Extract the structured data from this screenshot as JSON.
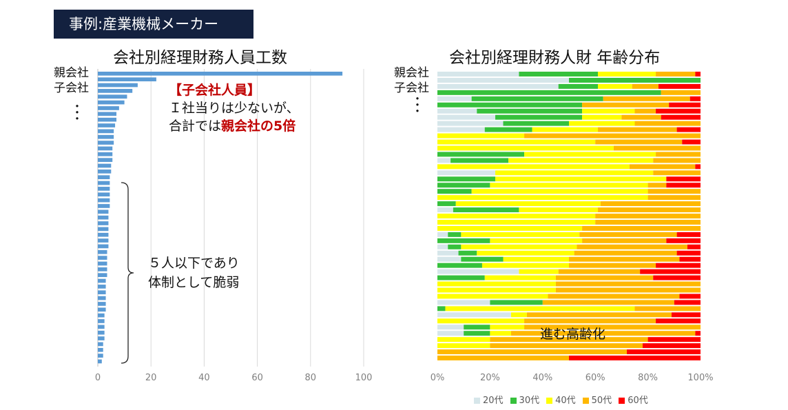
{
  "badge": "事例:産業機械メーカー",
  "left_title": "会社別経理財務人員工数",
  "right_title": "会社別経理財務人財 年齢分布",
  "row_labels": {
    "parent": "親会社",
    "subsidiary": "子会社",
    "ellipsis": "・\n・\n・"
  },
  "callout_top": {
    "heading": "【子会社人員】",
    "line1": "Ｉ社当りは少ないが、",
    "line2_prefix": "合計では",
    "line2_emph": "親会社の5倍"
  },
  "callout_mid": {
    "line1": "５人以下であり",
    "line2": "体制として脆弱"
  },
  "annotation_right": "進む高齢化",
  "colors": {
    "bar": "#5b9bd5",
    "20s": "#d6e6ea",
    "30s": "#36c13c",
    "40s": "#ffff00",
    "50s": "#ffb800",
    "60s": "#ff0000"
  },
  "chart_data": [
    {
      "type": "bar",
      "orientation": "horizontal",
      "title": "会社別経理財務人員工数",
      "xticks": [
        "0",
        "20",
        "40",
        "60",
        "80",
        "100"
      ],
      "xlim": [
        0,
        100
      ],
      "grid": true,
      "values": [
        92,
        22,
        15,
        13,
        11,
        10,
        8,
        7,
        7,
        6.5,
        6,
        6,
        6,
        5.5,
        5.5,
        5.5,
        5,
        5,
        4.5,
        4.5,
        4.5,
        4.5,
        4.5,
        4.5,
        4,
        4,
        4,
        4,
        4,
        4,
        4,
        3.5,
        3.5,
        3.5,
        3.5,
        3.5,
        3,
        3,
        3,
        3,
        3,
        3,
        2.5,
        2.5,
        2.5,
        2.5,
        2.5,
        2,
        2,
        2,
        1.5
      ]
    },
    {
      "type": "bar",
      "orientation": "horizontal",
      "stacked": true,
      "percent": true,
      "title": "会社別経理財務人財 年齢分布",
      "xticks": [
        "0%",
        "20%",
        "40%",
        "60%",
        "80%",
        "100%"
      ],
      "legend_position": "bottom",
      "series_names": [
        "20代",
        "30代",
        "40代",
        "50代",
        "60代"
      ],
      "rows": [
        [
          31,
          30,
          22,
          15,
          2
        ],
        [
          50,
          50,
          0,
          0,
          0
        ],
        [
          46,
          15,
          13,
          10,
          16
        ],
        [
          0,
          85,
          0,
          15,
          0
        ],
        [
          13,
          50,
          0,
          33,
          4
        ],
        [
          0,
          55,
          0,
          33,
          12
        ],
        [
          15,
          40,
          20,
          8,
          17
        ],
        [
          22,
          33,
          15,
          15,
          15
        ],
        [
          25,
          25,
          25,
          25,
          0
        ],
        [
          18,
          18,
          25,
          30,
          9
        ],
        [
          0,
          0,
          33,
          67,
          0
        ],
        [
          0,
          0,
          60,
          33,
          7
        ],
        [
          0,
          0,
          67,
          33,
          0
        ],
        [
          0,
          33,
          50,
          17,
          0
        ],
        [
          5,
          22,
          55,
          18,
          0
        ],
        [
          0,
          0,
          73,
          25,
          2
        ],
        [
          22,
          0,
          60,
          18,
          0
        ],
        [
          0,
          22,
          65,
          0,
          13
        ],
        [
          0,
          20,
          60,
          7,
          13
        ],
        [
          0,
          13,
          67,
          20,
          0
        ],
        [
          0,
          0,
          80,
          20,
          0
        ],
        [
          0,
          7,
          55,
          38,
          0
        ],
        [
          6,
          25,
          30,
          39,
          0
        ],
        [
          0,
          0,
          60,
          40,
          0
        ],
        [
          0,
          0,
          60,
          40,
          0
        ],
        [
          0,
          0,
          55,
          45,
          0
        ],
        [
          4,
          5,
          45,
          37,
          9
        ],
        [
          0,
          20,
          35,
          32,
          13
        ],
        [
          4,
          5,
          44,
          42,
          5
        ],
        [
          8,
          7,
          37,
          39,
          9
        ],
        [
          9,
          16,
          25,
          42,
          8
        ],
        [
          0,
          17,
          33,
          33,
          17
        ],
        [
          31,
          0,
          15,
          31,
          23
        ],
        [
          0,
          18,
          27,
          37,
          18
        ],
        [
          0,
          0,
          45,
          55,
          0
        ],
        [
          0,
          0,
          45,
          55,
          0
        ],
        [
          0,
          0,
          42,
          50,
          8
        ],
        [
          20,
          20,
          0,
          50,
          10
        ],
        [
          0,
          3,
          72,
          25,
          0
        ],
        [
          28,
          0,
          6,
          55,
          11
        ],
        [
          0,
          0,
          33,
          50,
          17
        ],
        [
          10,
          10,
          13,
          67,
          0
        ],
        [
          10,
          10,
          8,
          70,
          2
        ],
        [
          0,
          0,
          20,
          60,
          20
        ],
        [
          0,
          0,
          20,
          58,
          22
        ],
        [
          0,
          0,
          0,
          72,
          28
        ],
        [
          0,
          0,
          0,
          50,
          50
        ]
      ]
    }
  ]
}
